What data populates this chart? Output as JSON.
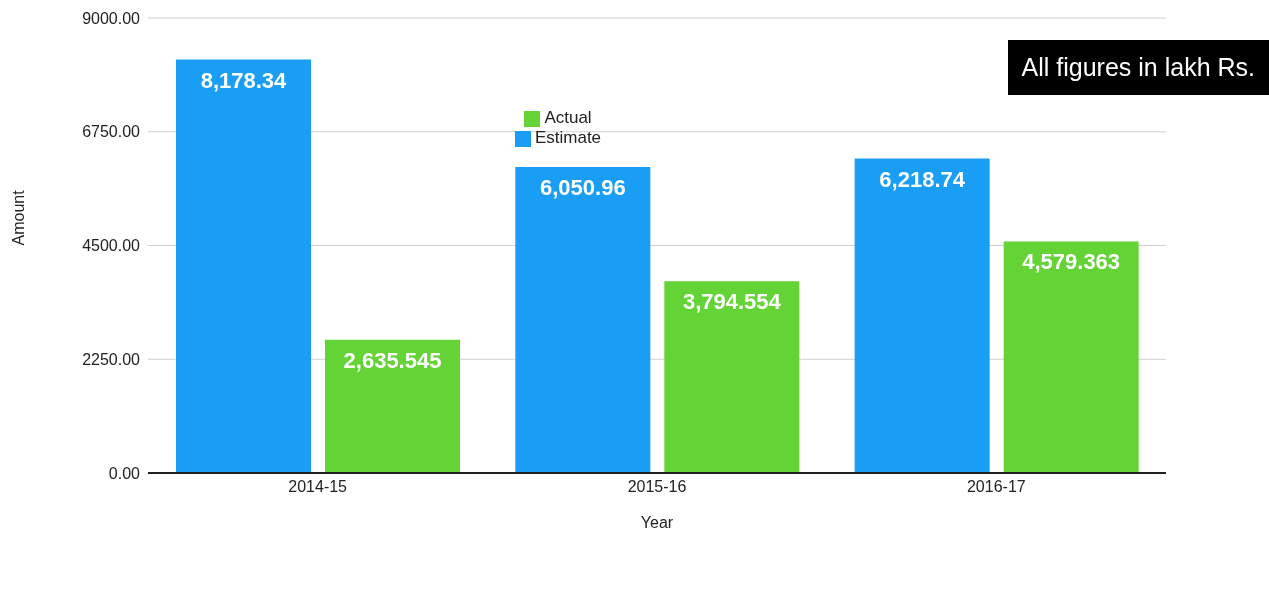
{
  "chart_data": {
    "type": "bar",
    "xlabel": "Year",
    "ylabel": "Amount",
    "categories": [
      "2014-15",
      "2015-16",
      "2016-17"
    ],
    "series": [
      {
        "name": "Estimate",
        "color": "#1a9ef5",
        "values": [
          8178.34,
          6050.96,
          6218.74
        ],
        "value_labels": [
          "8,178.34",
          "6,050.96",
          "6,218.74"
        ]
      },
      {
        "name": "Actual",
        "color": "#63d336",
        "values": [
          2635.545,
          3794.554,
          4579.363
        ],
        "value_labels": [
          "2,635.545",
          "3,794.554",
          "4,579.363"
        ]
      }
    ],
    "ylim": [
      0,
      9000
    ],
    "yticks": [
      {
        "value": 0,
        "label": "0.00"
      },
      {
        "value": 2250,
        "label": "2250.00"
      },
      {
        "value": 4500,
        "label": "4500.00"
      },
      {
        "value": 6750,
        "label": "6750.00"
      },
      {
        "value": 9000,
        "label": "9000.00"
      }
    ],
    "grid": "y",
    "legend": "top",
    "annotations": [
      "All figures in lakh Rs."
    ]
  }
}
